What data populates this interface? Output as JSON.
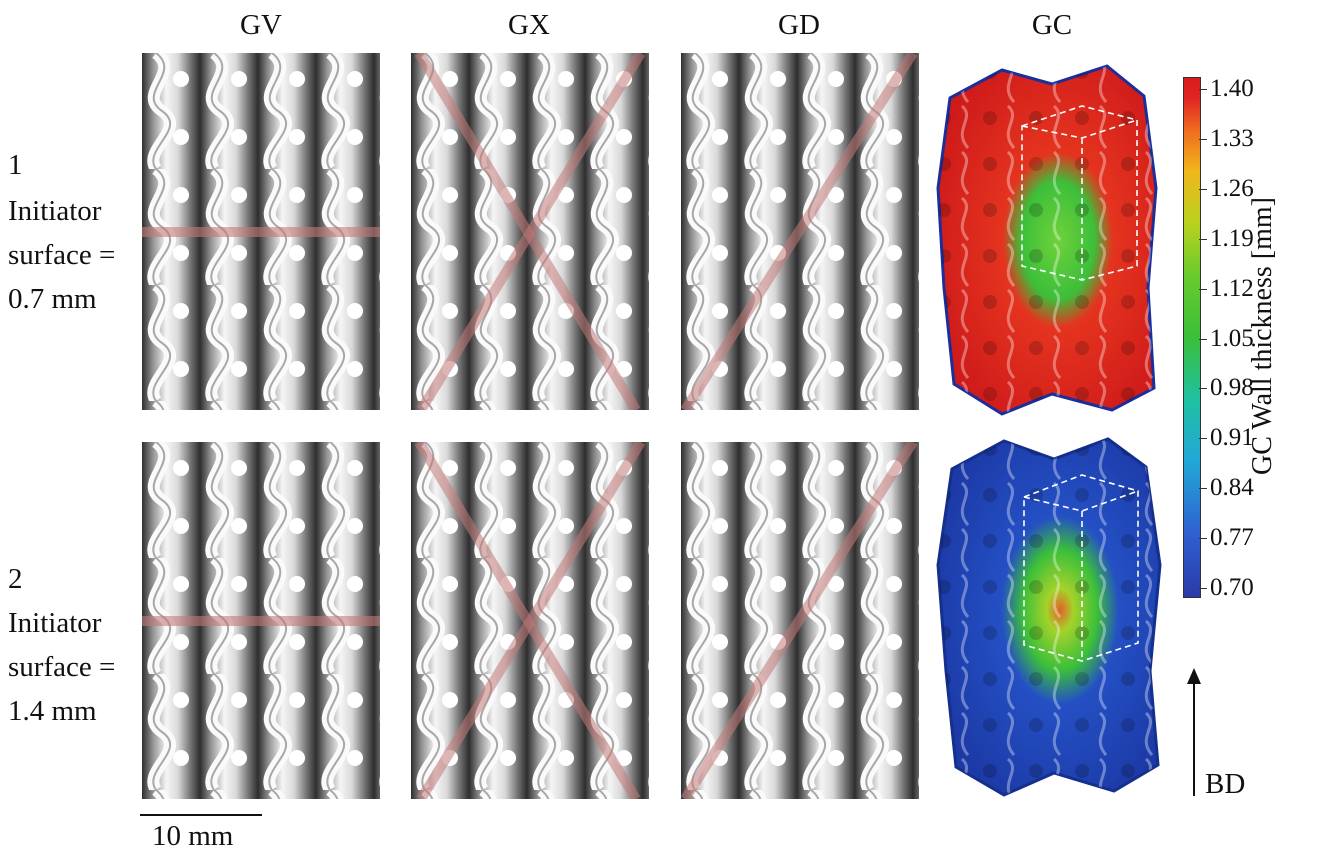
{
  "columns": [
    "GV",
    "GX",
    "GD",
    "GC"
  ],
  "rows": [
    {
      "number": "1",
      "line1": "Initiator",
      "line2": "surface =",
      "line3": "0.7 mm"
    },
    {
      "number": "2",
      "line1": "Initiator",
      "line2": "surface =",
      "line3": "1.4 mm"
    }
  ],
  "colorbar": {
    "title": "GC Wall thickness [mm]",
    "ticks": [
      "1.40",
      "1.33",
      "1.26",
      "1.19",
      "1.12",
      "1.05",
      "0.98",
      "0.91",
      "0.84",
      "0.77",
      "0.70"
    ],
    "colors": {
      "high": "#d81b1b",
      "mid": "#3cbf3a",
      "low": "#2b3aa8"
    }
  },
  "scalebar": {
    "label": "10 mm"
  },
  "build_direction": {
    "label": "BD"
  },
  "colors": {
    "lattice_light": "#f2f2f2",
    "lattice_dark": "#3a3a3a",
    "cut_line": "#c47a7a",
    "gc_red": "#d81b1b",
    "gc_blue": "#2245b8",
    "gc_green": "#4cc23a"
  }
}
